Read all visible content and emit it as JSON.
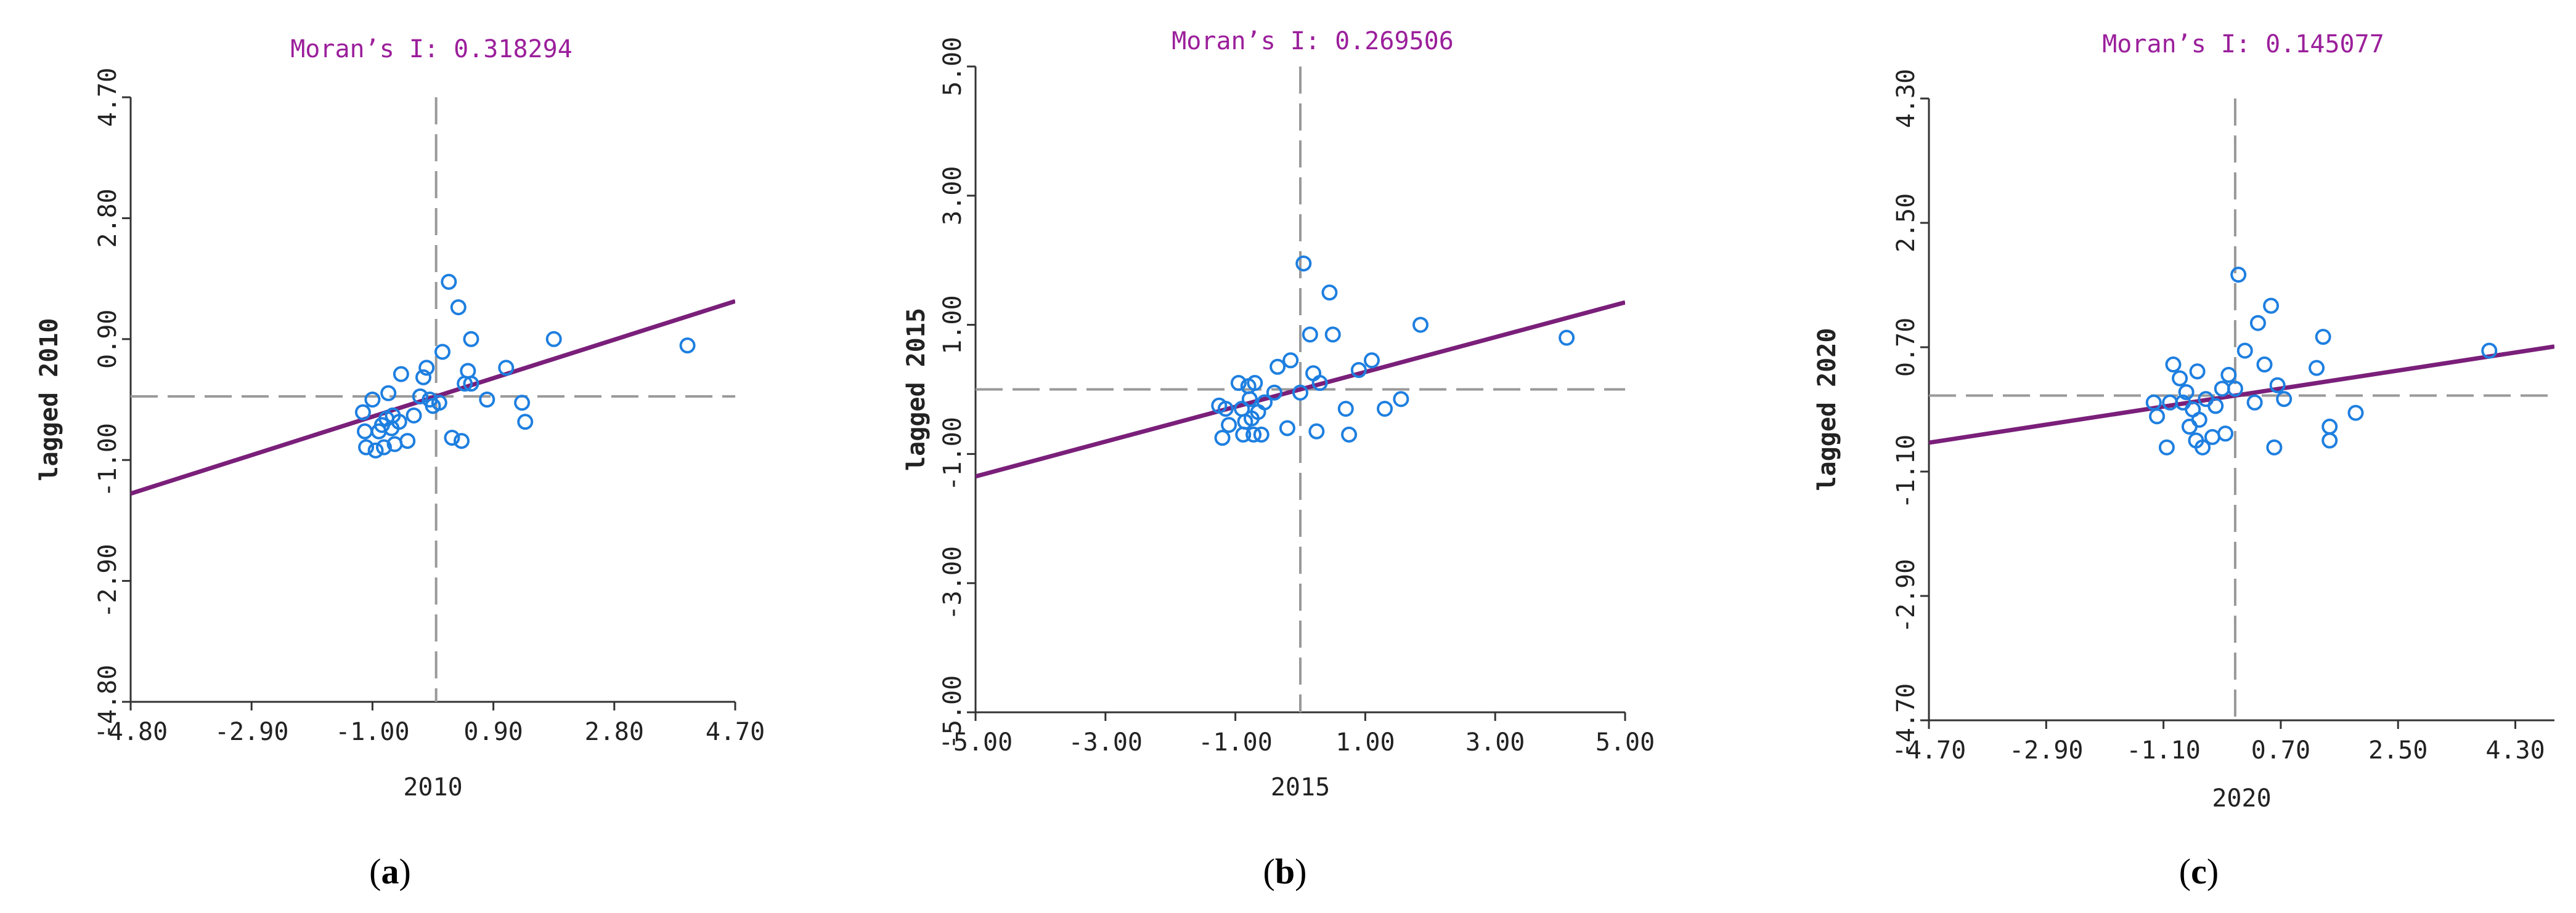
{
  "colors": {
    "title": "#9b1f9b",
    "regression_line": "#7a1f7a",
    "points": "#1e7fe0",
    "reference_lines": "#999999",
    "axis": "#333333"
  },
  "chart_data": [
    {
      "type": "scatter",
      "title": "Moran’s I: 0.318294",
      "xlabel": "2010",
      "ylabel": "lagged 2010",
      "caption": {
        "open": "(",
        "letter": "a",
        "close": ")"
      },
      "xlim": [
        -4.8,
        4.7
      ],
      "ylim": [
        -4.8,
        4.7
      ],
      "xticks": [
        -4.8,
        -2.9,
        -1.0,
        0.9,
        2.8,
        4.7
      ],
      "xtick_labels": [
        "-4.80",
        "-2.90",
        "-1.00",
        "0.90",
        "2.80",
        "4.70"
      ],
      "yticks": [
        -4.8,
        -2.9,
        -1.0,
        0.9,
        2.8,
        4.7
      ],
      "ytick_labels": [
        "-4.80",
        "-2.90",
        "-1.00",
        "0.90",
        "2.80",
        "4.70"
      ],
      "grid": false,
      "regression": {
        "slope": 0.318294,
        "intercept": 0
      },
      "reference_lines": {
        "x": 0,
        "y": 0
      },
      "points": [
        [
          -1.15,
          -0.25
        ],
        [
          -1.12,
          -0.55
        ],
        [
          -1.1,
          -0.8
        ],
        [
          -1.0,
          -0.05
        ],
        [
          -0.95,
          -0.85
        ],
        [
          -0.9,
          -0.55
        ],
        [
          -0.85,
          -0.45
        ],
        [
          -0.82,
          -0.8
        ],
        [
          -0.78,
          -0.35
        ],
        [
          -0.75,
          0.05
        ],
        [
          -0.7,
          -0.5
        ],
        [
          -0.68,
          -0.3
        ],
        [
          -0.65,
          -0.75
        ],
        [
          -0.58,
          -0.4
        ],
        [
          -0.55,
          0.35
        ],
        [
          -0.45,
          -0.7
        ],
        [
          -0.35,
          -0.3
        ],
        [
          -0.25,
          0.0
        ],
        [
          -0.2,
          0.3
        ],
        [
          -0.15,
          0.45
        ],
        [
          -0.1,
          -0.05
        ],
        [
          -0.05,
          -0.15
        ],
        [
          0.05,
          -0.1
        ],
        [
          0.1,
          0.7
        ],
        [
          0.2,
          1.8
        ],
        [
          0.25,
          -0.65
        ],
        [
          0.35,
          1.4
        ],
        [
          0.4,
          -0.7
        ],
        [
          0.45,
          0.2
        ],
        [
          0.5,
          0.4
        ],
        [
          0.55,
          0.2
        ],
        [
          0.55,
          0.9
        ],
        [
          0.8,
          -0.05
        ],
        [
          1.1,
          0.45
        ],
        [
          1.35,
          -0.1
        ],
        [
          1.4,
          -0.4
        ],
        [
          1.85,
          0.9
        ],
        [
          3.95,
          0.8
        ]
      ]
    },
    {
      "type": "scatter",
      "title": "Moran’s I: 0.269506",
      "xlabel": "2015",
      "ylabel": "lagged 2015",
      "caption": {
        "open": "(",
        "letter": "b",
        "close": ")"
      },
      "xlim": [
        -5.0,
        5.0
      ],
      "ylim": [
        -5.0,
        5.0
      ],
      "xticks": [
        -5.0,
        -3.0,
        -1.0,
        1.0,
        3.0,
        5.0
      ],
      "xtick_labels": [
        "-5.00",
        "-3.00",
        "-1.00",
        "1.00",
        "3.00",
        "5.00"
      ],
      "yticks": [
        -5.0,
        -3.0,
        -1.0,
        1.0,
        3.0,
        5.0
      ],
      "ytick_labels": [
        "-5.00",
        "-3.00",
        "-1.00",
        "1.00",
        "3.00",
        "5.00"
      ],
      "grid": false,
      "regression": {
        "slope": 0.269506,
        "intercept": 0
      },
      "reference_lines": {
        "x": 0,
        "y": 0
      },
      "points": [
        [
          -1.25,
          -0.25
        ],
        [
          -1.2,
          -0.75
        ],
        [
          -1.15,
          -0.3
        ],
        [
          -1.1,
          -0.55
        ],
        [
          -0.95,
          0.1
        ],
        [
          -0.9,
          -0.3
        ],
        [
          -0.88,
          -0.7
        ],
        [
          -0.85,
          -0.5
        ],
        [
          -0.8,
          0.05
        ],
        [
          -0.78,
          -0.15
        ],
        [
          -0.75,
          -0.45
        ],
        [
          -0.72,
          -0.7
        ],
        [
          -0.7,
          0.1
        ],
        [
          -0.65,
          -0.35
        ],
        [
          -0.6,
          -0.7
        ],
        [
          -0.55,
          -0.2
        ],
        [
          -0.4,
          -0.05
        ],
        [
          -0.35,
          0.35
        ],
        [
          -0.2,
          -0.6
        ],
        [
          -0.15,
          0.45
        ],
        [
          0.0,
          -0.05
        ],
        [
          0.05,
          1.95
        ],
        [
          0.15,
          0.85
        ],
        [
          0.2,
          0.25
        ],
        [
          0.25,
          -0.65
        ],
        [
          0.3,
          0.1
        ],
        [
          0.45,
          1.5
        ],
        [
          0.5,
          0.85
        ],
        [
          0.7,
          -0.3
        ],
        [
          0.75,
          -0.7
        ],
        [
          0.9,
          0.3
        ],
        [
          1.1,
          0.45
        ],
        [
          1.3,
          -0.3
        ],
        [
          1.55,
          -0.15
        ],
        [
          1.85,
          1.0
        ],
        [
          4.1,
          0.8
        ]
      ]
    },
    {
      "type": "scatter",
      "title": "Moran’s I: 0.145077",
      "xlabel": "2020",
      "ylabel": "lagged 2020",
      "caption": {
        "open": "(",
        "letter": "c",
        "close": ")"
      },
      "xlim": [
        -4.7,
        4.9
      ],
      "ylim": [
        -4.7,
        4.3
      ],
      "xticks": [
        -4.7,
        -2.9,
        -1.1,
        0.7,
        2.5,
        4.3
      ],
      "xtick_labels": [
        "-4.70",
        "-2.90",
        "-1.10",
        "0.70",
        "2.50",
        "4.30"
      ],
      "yticks": [
        -4.7,
        -2.9,
        -1.1,
        0.7,
        2.5,
        4.3
      ],
      "ytick_labels": [
        "-4.70",
        "-2.90",
        "-1.10",
        "0.70",
        "2.50",
        "4.30"
      ],
      "grid": false,
      "regression": {
        "slope": 0.145077,
        "intercept": 0
      },
      "reference_lines": {
        "x": 0,
        "y": 0
      },
      "points": [
        [
          -1.25,
          -0.1
        ],
        [
          -1.2,
          -0.3
        ],
        [
          -1.05,
          -0.75
        ],
        [
          -1.0,
          -0.1
        ],
        [
          -0.95,
          0.45
        ],
        [
          -0.85,
          0.25
        ],
        [
          -0.8,
          -0.1
        ],
        [
          -0.75,
          0.05
        ],
        [
          -0.7,
          -0.45
        ],
        [
          -0.65,
          -0.2
        ],
        [
          -0.6,
          -0.65
        ],
        [
          -0.58,
          0.35
        ],
        [
          -0.55,
          -0.35
        ],
        [
          -0.5,
          -0.75
        ],
        [
          -0.45,
          -0.05
        ],
        [
          -0.35,
          -0.6
        ],
        [
          -0.3,
          -0.15
        ],
        [
          -0.2,
          0.1
        ],
        [
          -0.15,
          -0.55
        ],
        [
          -0.1,
          0.3
        ],
        [
          0.0,
          0.1
        ],
        [
          0.05,
          1.75
        ],
        [
          0.15,
          0.65
        ],
        [
          0.3,
          -0.1
        ],
        [
          0.35,
          1.05
        ],
        [
          0.45,
          0.45
        ],
        [
          0.55,
          1.3
        ],
        [
          0.6,
          -0.75
        ],
        [
          0.65,
          0.15
        ],
        [
          0.75,
          -0.05
        ],
        [
          1.25,
          0.4
        ],
        [
          1.35,
          0.85
        ],
        [
          1.45,
          -0.45
        ],
        [
          1.45,
          -0.65
        ],
        [
          1.85,
          -0.25
        ],
        [
          3.9,
          0.65
        ]
      ]
    }
  ]
}
